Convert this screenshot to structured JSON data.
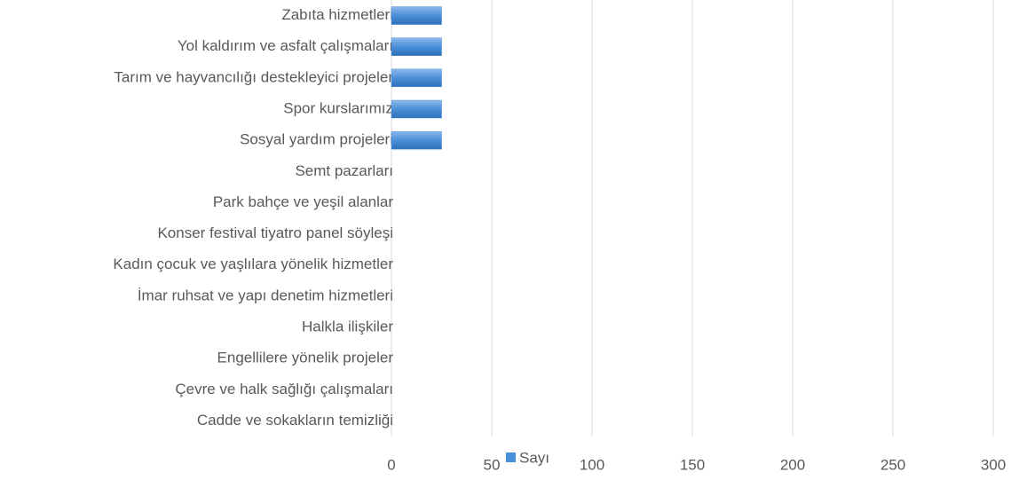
{
  "chart_data": {
    "type": "barh",
    "categories": [
      "Zabıta hizmetleri",
      "Yol kaldırım ve asfalt çalışmaları",
      "Tarım ve hayvancılığı destekleyici projeler",
      "Spor kurslarımız",
      "Sosyal yardım projeleri",
      "Semt pazarları",
      "Park bahçe ve yeşil alanlar",
      "Konser festival tiyatro panel söyleşi",
      "Kadın çocuk ve yaşlılara yönelik hizmetler",
      "İmar ruhsat ve yapı denetim hizmetleri",
      "Halkla ilişkiler",
      "Engellilere yönelik projeler",
      "Çevre ve halk sağlığı çalışmaları",
      "Cadde ve sokakların temizliği"
    ],
    "series": [
      {
        "name": "Sayı",
        "color": "#4a8fd9",
        "values": [
          25,
          25,
          25,
          25,
          25,
          0,
          0,
          0,
          0,
          0,
          0,
          0,
          0,
          0
        ]
      }
    ],
    "xlim": [
      0,
      300
    ],
    "xticks": [
      0,
      50,
      100,
      150,
      200,
      250,
      300
    ],
    "grid": true,
    "legend": "bottom"
  }
}
